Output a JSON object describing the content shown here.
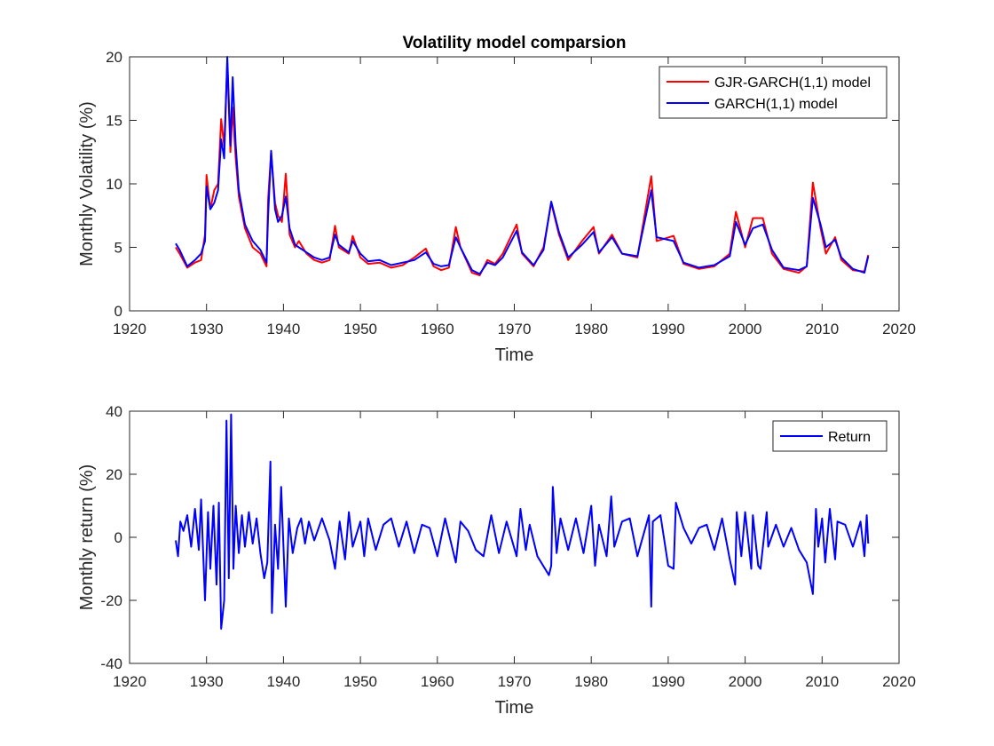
{
  "chart_data": [
    {
      "type": "line",
      "title": "Volatility model comparsion",
      "xlabel": "Time",
      "ylabel": "Monthly Volatility (%)",
      "x": [
        1926.0,
        1926.5,
        1927.5,
        1928.5,
        1929.3,
        1929.8,
        1930.0,
        1930.5,
        1931.0,
        1931.5,
        1931.9,
        1932.3,
        1932.7,
        1933.1,
        1933.4,
        1933.8,
        1934.2,
        1935.0,
        1936.0,
        1937.0,
        1937.8,
        1938.0,
        1938.4,
        1938.9,
        1939.3,
        1939.8,
        1940.3,
        1940.8,
        1941.5,
        1942.0,
        1943.0,
        1944.0,
        1945.0,
        1946.0,
        1946.7,
        1947.2,
        1948.5,
        1949.0,
        1950.0,
        1951.0,
        1952.5,
        1954.0,
        1955.5,
        1957.0,
        1958.5,
        1959.5,
        1960.5,
        1961.5,
        1962.4,
        1963.0,
        1964.5,
        1965.5,
        1966.5,
        1967.5,
        1968.5,
        1970.3,
        1971.0,
        1972.5,
        1973.8,
        1974.8,
        1975.8,
        1977.0,
        1978.8,
        1980.3,
        1981.0,
        1982.7,
        1984.0,
        1986.0,
        1987.8,
        1988.5,
        1990.7,
        1992.0,
        1994.0,
        1996.0,
        1998.0,
        1998.8,
        2000.0,
        2001.0,
        2002.3,
        2003.5,
        2005.0,
        2007.0,
        2008.0,
        2008.8,
        2009.8,
        2010.5,
        2011.7,
        2012.5,
        2014.0,
        2015.5,
        2016.0
      ],
      "series": [
        {
          "name": "GJR-GARCH(1,1) model",
          "color": "#ff0000",
          "values": [
            5.0,
            4.5,
            3.4,
            3.8,
            4.0,
            6.0,
            10.7,
            8.0,
            9.5,
            10.0,
            15.1,
            13.0,
            19.5,
            12.5,
            16.0,
            12.0,
            9.0,
            6.5,
            5.0,
            4.5,
            3.5,
            8.8,
            12.5,
            8.5,
            7.5,
            7.0,
            10.8,
            6.0,
            5.0,
            5.5,
            4.5,
            4.0,
            3.8,
            4.0,
            6.7,
            5.0,
            4.5,
            5.9,
            4.2,
            3.7,
            3.8,
            3.4,
            3.6,
            4.2,
            4.9,
            3.5,
            3.2,
            3.4,
            6.6,
            5.0,
            3.0,
            2.8,
            4.0,
            3.7,
            4.5,
            6.8,
            4.5,
            3.5,
            5.0,
            8.5,
            6.0,
            4.0,
            5.5,
            6.6,
            4.5,
            6.0,
            4.5,
            4.2,
            10.6,
            5.5,
            5.9,
            3.7,
            3.3,
            3.5,
            4.5,
            7.8,
            5.0,
            7.3,
            7.3,
            4.5,
            3.3,
            3.0,
            3.5,
            10.1,
            6.5,
            4.5,
            5.8,
            4.0,
            3.2,
            3.1,
            4.4
          ]
        },
        {
          "name": "GARCH(1,1) model",
          "color": "#0000ff",
          "values": [
            5.3,
            4.8,
            3.5,
            4.0,
            4.5,
            5.5,
            9.8,
            8.0,
            8.5,
            9.5,
            13.5,
            12.0,
            20.0,
            13.0,
            18.4,
            13.0,
            9.5,
            6.8,
            5.5,
            4.8,
            3.8,
            7.5,
            12.6,
            8.0,
            7.0,
            7.5,
            9.0,
            6.5,
            5.2,
            5.0,
            4.6,
            4.2,
            4.0,
            4.2,
            6.0,
            5.2,
            4.6,
            5.5,
            4.5,
            3.9,
            4.0,
            3.6,
            3.8,
            4.0,
            4.6,
            3.7,
            3.5,
            3.6,
            5.8,
            5.0,
            3.2,
            2.9,
            3.8,
            3.6,
            4.2,
            6.3,
            4.6,
            3.6,
            4.8,
            8.6,
            6.2,
            4.2,
            5.2,
            6.2,
            4.6,
            5.8,
            4.5,
            4.3,
            9.5,
            5.8,
            5.5,
            3.8,
            3.4,
            3.6,
            4.3,
            7.0,
            5.2,
            6.5,
            6.8,
            4.8,
            3.4,
            3.2,
            3.5,
            8.9,
            6.8,
            5.0,
            5.6,
            4.2,
            3.3,
            3.0,
            4.3
          ]
        }
      ],
      "xlim": [
        1920,
        2020
      ],
      "xticks": [
        1920,
        1930,
        1940,
        1950,
        1960,
        1970,
        1980,
        1990,
        2000,
        2010,
        2020
      ],
      "ylim": [
        0,
        20
      ],
      "yticks": [
        0,
        5,
        10,
        15,
        20
      ],
      "legend": "northeast",
      "grid": false
    },
    {
      "type": "line",
      "xlabel": "Time",
      "ylabel": "Monthly return (%)",
      "x": [
        1926.0,
        1926.3,
        1926.6,
        1927.0,
        1927.5,
        1928.0,
        1928.5,
        1929.0,
        1929.3,
        1929.8,
        1930.2,
        1930.5,
        1930.9,
        1931.3,
        1931.6,
        1931.9,
        1932.3,
        1932.6,
        1932.9,
        1933.2,
        1933.5,
        1933.8,
        1934.2,
        1934.6,
        1935.0,
        1935.5,
        1936.0,
        1936.5,
        1937.0,
        1937.5,
        1937.9,
        1938.3,
        1938.5,
        1938.9,
        1939.3,
        1939.7,
        1940.3,
        1940.7,
        1941.2,
        1941.8,
        1942.3,
        1942.8,
        1943.3,
        1944,
        1945,
        1946,
        1946.7,
        1947.3,
        1948,
        1948.5,
        1949,
        1950,
        1950.5,
        1951,
        1952,
        1953,
        1954,
        1955,
        1956,
        1957,
        1958,
        1959,
        1960,
        1961,
        1962.4,
        1963,
        1964,
        1965,
        1966,
        1967,
        1968,
        1969,
        1970.3,
        1970.8,
        1971.5,
        1972,
        1973,
        1974.5,
        1974.8,
        1975.0,
        1975.5,
        1976,
        1977,
        1978,
        1979,
        1980,
        1980.5,
        1981,
        1982,
        1982.6,
        1983,
        1984,
        1985,
        1986,
        1987.5,
        1987.8,
        1988,
        1989,
        1990,
        1990.7,
        1991,
        1992,
        1993,
        1994,
        1995,
        1996,
        1997,
        1998,
        1998.7,
        1998.9,
        1999.5,
        2000,
        2000.8,
        2001,
        2001.7,
        2002,
        2002.8,
        2003,
        2004,
        2005,
        2006,
        2007,
        2008,
        2008.8,
        2009.2,
        2009.5,
        2010,
        2010.4,
        2011,
        2011.7,
        2012,
        2013,
        2014,
        2015,
        2015.5,
        2015.8,
        2016
      ],
      "series": [
        {
          "name": "Return",
          "color": "#0000ff",
          "values": [
            -1,
            -6,
            5,
            2,
            7,
            -3,
            9,
            -4,
            12,
            -20,
            8,
            -10,
            10,
            -15,
            11,
            -29,
            -20,
            37,
            -13,
            39,
            -10,
            10,
            -5,
            7,
            -3,
            8,
            -2,
            6,
            -5,
            -13,
            -8,
            24,
            -24,
            4,
            -10,
            16,
            -22,
            6,
            -5,
            3,
            6,
            -2,
            5,
            -1,
            6,
            -1,
            -10,
            5,
            -7,
            8,
            -3,
            5,
            -6,
            6,
            -4,
            4,
            6,
            -3,
            5,
            -5,
            4,
            3,
            -6,
            6,
            -8,
            5,
            2,
            -4,
            -6,
            7,
            -5,
            5,
            -6,
            9,
            -4,
            4,
            -6,
            -12,
            -9,
            16,
            -5,
            6,
            -4,
            6,
            -5,
            10,
            -9,
            4,
            -6,
            13,
            -3,
            5,
            6,
            -6,
            7,
            -22,
            5,
            7,
            -9,
            -10,
            11,
            3,
            -2,
            3,
            4,
            -4,
            6,
            -7,
            -15,
            8,
            -6,
            8,
            -10,
            7,
            -9,
            -10,
            8,
            -3,
            4,
            -3,
            3,
            -4,
            -8,
            -18,
            9,
            -3,
            6,
            -8,
            9,
            -7,
            5,
            4,
            -3,
            5,
            -6,
            7,
            -2
          ]
        }
      ],
      "xlim": [
        1920,
        2020
      ],
      "xticks": [
        1920,
        1930,
        1940,
        1950,
        1960,
        1970,
        1980,
        1990,
        2000,
        2010,
        2020
      ],
      "ylim": [
        -40,
        40
      ],
      "yticks": [
        -40,
        -20,
        0,
        20,
        40
      ],
      "legend": "northeast",
      "grid": false
    }
  ]
}
